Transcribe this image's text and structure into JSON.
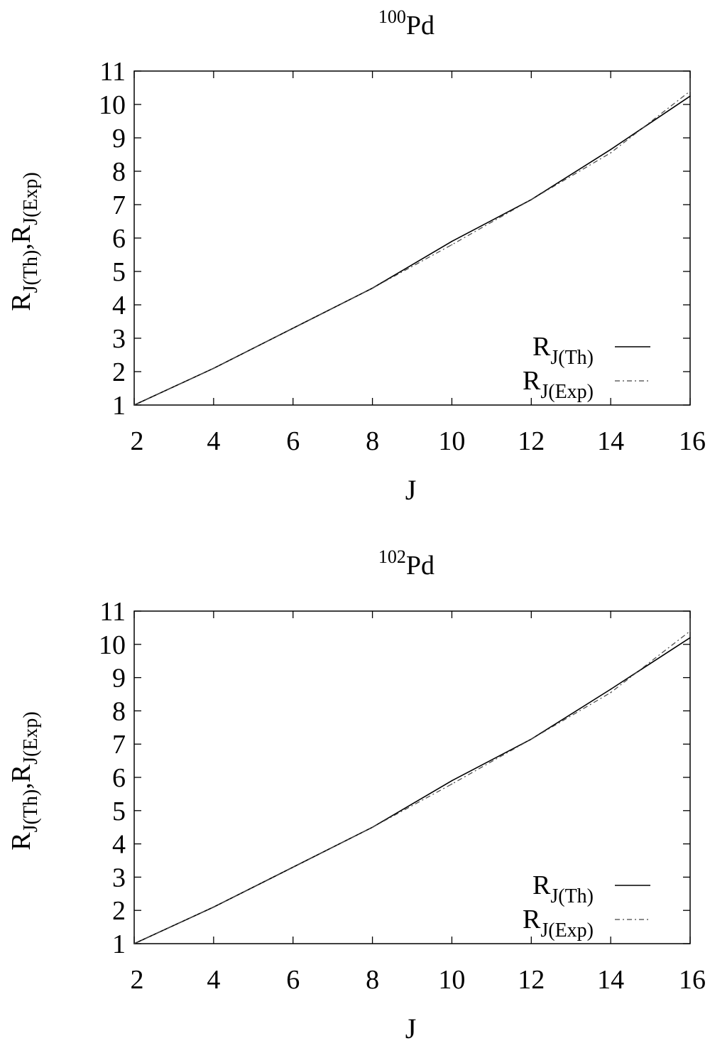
{
  "chart_data": [
    {
      "type": "line",
      "title": "Pd",
      "title_superscript": "100",
      "xlabel": "J",
      "ylabel": {
        "parts": [
          {
            "base": "R",
            "sub": "J(Th)"
          },
          {
            "base": ",",
            "sub": ""
          },
          {
            "base": "R",
            "sub": "J(Exp)"
          }
        ]
      },
      "xlim": [
        2,
        16
      ],
      "ylim": [
        1,
        11
      ],
      "xticks": [
        2,
        4,
        6,
        8,
        10,
        12,
        14,
        16
      ],
      "yticks": [
        1,
        2,
        3,
        4,
        5,
        6,
        7,
        8,
        9,
        10,
        11
      ],
      "grid": false,
      "legend_position": "bottom-right",
      "x": [
        2,
        4,
        6,
        8,
        10,
        12,
        14,
        16
      ],
      "series": [
        {
          "name_base": "R",
          "name_sub": "J(Th)",
          "style": "solid",
          "values": [
            1.0,
            2.1,
            3.3,
            4.5,
            5.9,
            7.15,
            8.65,
            10.25
          ]
        },
        {
          "name_base": "R",
          "name_sub": "J(Exp)",
          "style": "dashdot",
          "values": [
            1.0,
            2.1,
            3.3,
            4.5,
            5.8,
            7.15,
            8.55,
            10.4
          ]
        }
      ]
    },
    {
      "type": "line",
      "title": "Pd",
      "title_superscript": "102",
      "xlabel": "J",
      "ylabel": {
        "parts": [
          {
            "base": "R",
            "sub": "J(Th)"
          },
          {
            "base": ",",
            "sub": ""
          },
          {
            "base": "R",
            "sub": "J(Exp)"
          }
        ]
      },
      "xlim": [
        2,
        16
      ],
      "ylim": [
        1,
        11
      ],
      "xticks": [
        2,
        4,
        6,
        8,
        10,
        12,
        14,
        16
      ],
      "yticks": [
        1,
        2,
        3,
        4,
        5,
        6,
        7,
        8,
        9,
        10,
        11
      ],
      "grid": false,
      "legend_position": "bottom-right",
      "x": [
        2,
        4,
        6,
        8,
        10,
        12,
        14,
        16
      ],
      "series": [
        {
          "name_base": "R",
          "name_sub": "J(Th)",
          "style": "solid",
          "values": [
            1.0,
            2.1,
            3.3,
            4.5,
            5.9,
            7.15,
            8.65,
            10.2
          ]
        },
        {
          "name_base": "R",
          "name_sub": "J(Exp)",
          "style": "dashdot",
          "values": [
            1.0,
            2.1,
            3.3,
            4.5,
            5.8,
            7.15,
            8.55,
            10.4
          ]
        }
      ]
    }
  ]
}
